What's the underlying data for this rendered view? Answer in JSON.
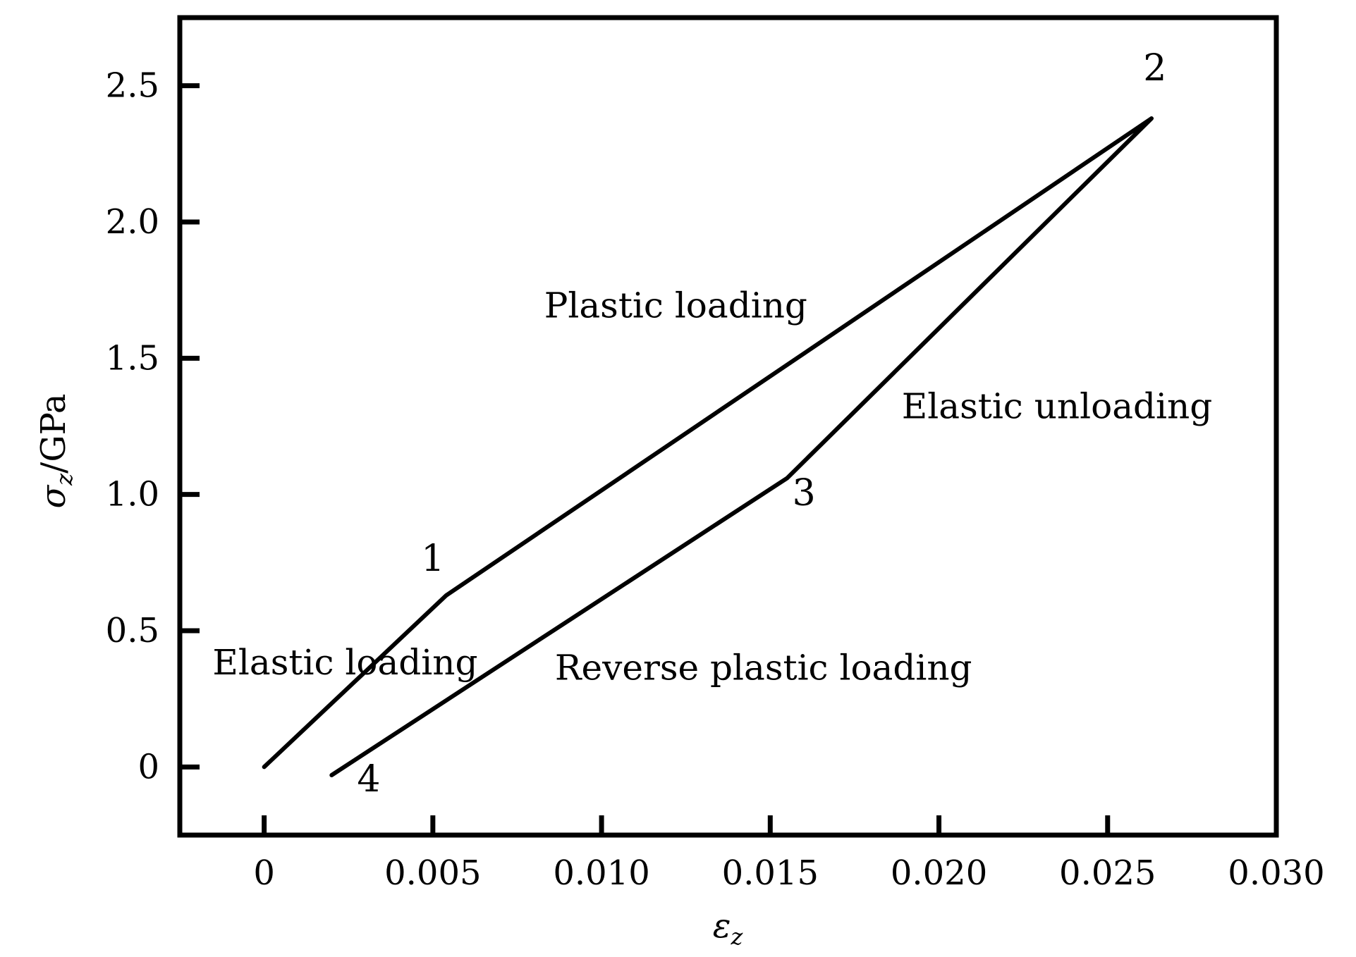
{
  "chart_data": {
    "type": "line",
    "xlabel": {
      "symbol": "ε",
      "subscript": "z"
    },
    "ylabel": {
      "symbol": "σ",
      "subscript": "z",
      "unit": "/GPa"
    },
    "xlim": [
      -0.0025,
      0.03
    ],
    "ylim": [
      -0.25,
      2.75
    ],
    "x_ticks": [
      0,
      0.005,
      0.01,
      0.015,
      0.02,
      0.025,
      0.03
    ],
    "x_tick_labels": [
      "0",
      "0.005",
      "0.010",
      "0.015",
      "0.020",
      "0.025",
      "0.030"
    ],
    "y_ticks": [
      0,
      0.5,
      1.0,
      1.5,
      2.0,
      2.5
    ],
    "y_tick_labels": [
      "0",
      "0.5",
      "1.0",
      "1.5",
      "2.0",
      "2.5"
    ],
    "grid": false,
    "series": [
      {
        "points": [
          {
            "x": 0.0,
            "y": 0.0
          },
          {
            "x": 0.0054,
            "y": 0.63
          },
          {
            "x": 0.0263,
            "y": 2.38
          },
          {
            "x": 0.0155,
            "y": 1.06
          },
          {
            "x": 0.002,
            "y": -0.03
          }
        ]
      }
    ],
    "point_labels": [
      {
        "text": "1",
        "x": 0.005,
        "y": 0.72
      },
      {
        "text": "2",
        "x": 0.0264,
        "y": 2.52
      },
      {
        "text": "3",
        "x": 0.016,
        "y": 0.96
      },
      {
        "text": "4",
        "x": 0.0031,
        "y": -0.09
      }
    ],
    "annotations": [
      {
        "text": "Plastic loading",
        "x": 0.0122,
        "y": 1.65
      },
      {
        "text": "Elastic unloading",
        "x": 0.0235,
        "y": 1.28
      },
      {
        "text": "Elastic loading",
        "x": 0.0024,
        "y": 0.34
      },
      {
        "text": "Reverse plastic loading",
        "x": 0.0148,
        "y": 0.32
      }
    ]
  }
}
